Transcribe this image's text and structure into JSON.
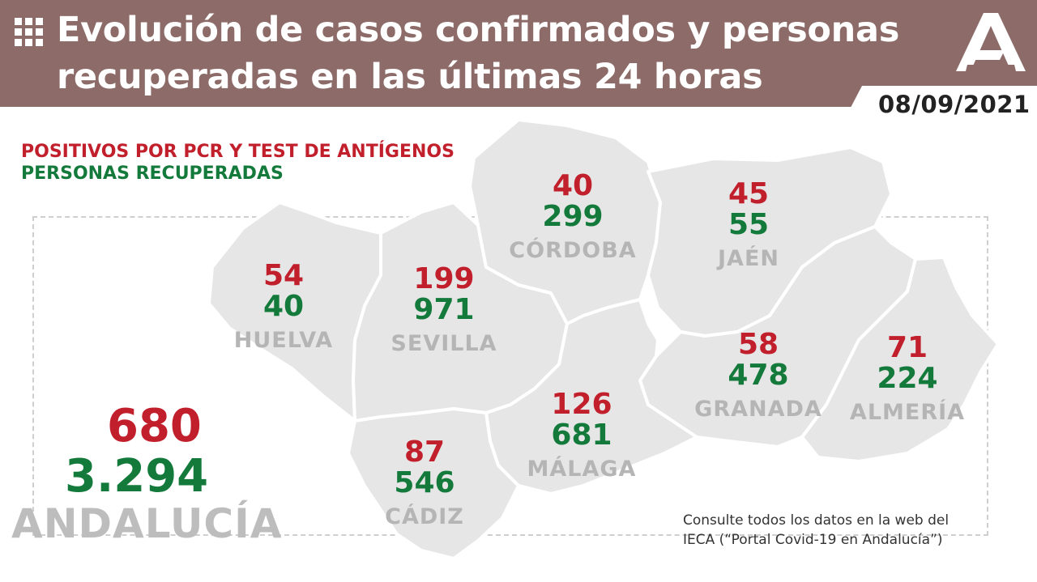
{
  "header": {
    "title_line1": "Evolución de casos confirmados y personas",
    "title_line2": "recuperadas en las últimas 24 horas",
    "date": "08/09/2021",
    "background_color": "#8c6b69",
    "menu_icon": "grid-icon",
    "logo_icon": "junta-andalucia-logo"
  },
  "legend": {
    "positives_label": "POSITIVOS POR PCR Y TEST DE ANTÍGENOS",
    "recovered_label": "PERSONAS RECUPERADAS",
    "positives_color": "#c21f2c",
    "recovered_color": "#137a3b"
  },
  "provinces": [
    {
      "name": "HUELVA",
      "positives": "54",
      "recovered": "40"
    },
    {
      "name": "SEVILLA",
      "positives": "199",
      "recovered": "971"
    },
    {
      "name": "CÓRDOBA",
      "positives": "40",
      "recovered": "299"
    },
    {
      "name": "JAÉN",
      "positives": "45",
      "recovered": "55"
    },
    {
      "name": "GRANADA",
      "positives": "58",
      "recovered": "478"
    },
    {
      "name": "ALMERÍA",
      "positives": "71",
      "recovered": "224"
    },
    {
      "name": "MÁLAGA",
      "positives": "126",
      "recovered": "681"
    },
    {
      "name": "CÁDIZ",
      "positives": "87",
      "recovered": "546"
    }
  ],
  "total": {
    "name": "ANDALUCÍA",
    "positives": "680",
    "recovered": "3.294"
  },
  "note": {
    "line1": "Consulte todos los datos en la web del",
    "line2": "IECA (“Portal Covid-19 en Andalucía”)"
  }
}
